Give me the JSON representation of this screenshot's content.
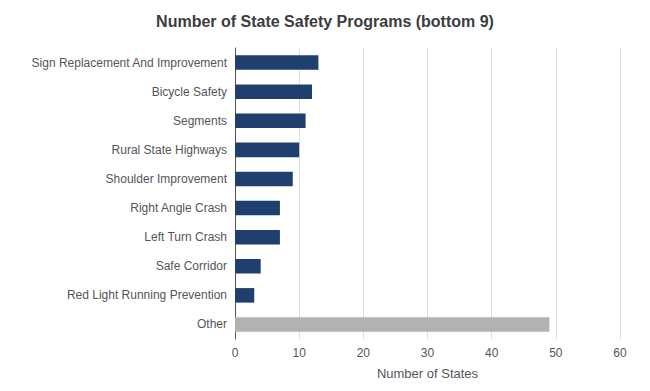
{
  "chart_data": {
    "type": "bar",
    "orientation": "horizontal",
    "title": "Number of State Safety Programs (bottom 9)",
    "categories": [
      "Other",
      "Red Light Running Prevention",
      "Safe Corridor",
      "Left Turn Crash",
      "Right Angle Crash",
      "Shoulder Improvement",
      "Rural State Highways",
      "Segments",
      "Bicycle Safety",
      "Sign Replacement And Improvement"
    ],
    "values": [
      49,
      3,
      4,
      7,
      7,
      9,
      10,
      11,
      12,
      13
    ],
    "colors": [
      "#b2b2b2",
      "#1f3f6e",
      "#1f3f6e",
      "#1f3f6e",
      "#1f3f6e",
      "#1f3f6e",
      "#1f3f6e",
      "#1f3f6e",
      "#1f3f6e",
      "#1f3f6e"
    ],
    "xlabel": "Number of States",
    "xlim": [
      0,
      60
    ],
    "xticks": [
      0,
      10,
      20,
      30,
      40,
      50,
      60
    ],
    "grid": true
  }
}
